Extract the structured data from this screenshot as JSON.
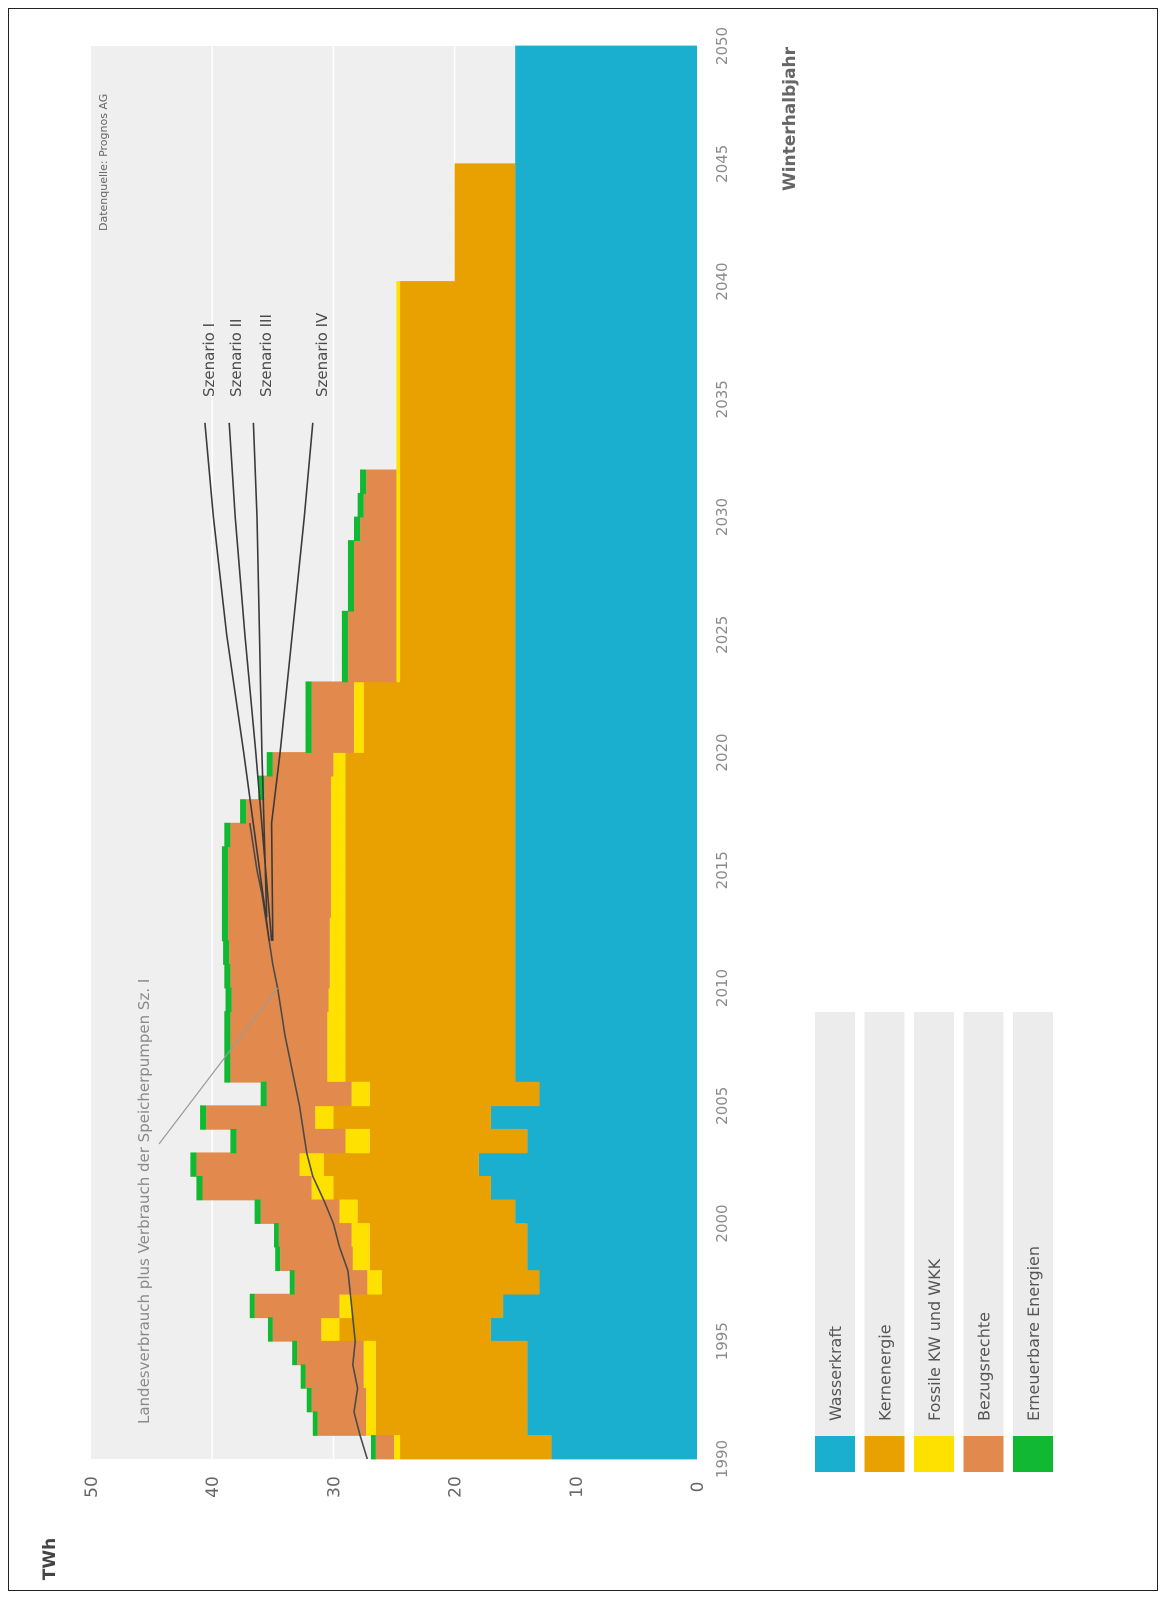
{
  "chart_data": {
    "type": "area",
    "orientation": "rotated-90-clockwise",
    "xlabel": "Winterhalbjahr",
    "ylabel": "TWh",
    "xlim": [
      1990,
      2050
    ],
    "ylim": [
      0,
      50
    ],
    "x_ticks": [
      "1990",
      "1995",
      "2000",
      "2005",
      "2010",
      "2015",
      "2020",
      "2025",
      "2030",
      "2035",
      "2040",
      "2045",
      "2050"
    ],
    "y_ticks": [
      "0",
      "10",
      "20",
      "30",
      "40",
      "50"
    ],
    "grid": true,
    "legend_position": "bottom",
    "source": "Datenquelle: Prognos AG",
    "years": [
      1990,
      1991,
      1992,
      1993,
      1994,
      1995,
      1996,
      1997,
      1998,
      1999,
      2000,
      2001,
      2002,
      2003,
      2004,
      2005,
      2006,
      2007,
      2008,
      2009,
      2010,
      2011,
      2012,
      2013,
      2014,
      2015,
      2016,
      2017,
      2018,
      2019,
      2020,
      2021,
      2022,
      2023,
      2024,
      2025,
      2026,
      2027,
      2028,
      2029,
      2030,
      2031,
      2032,
      2033,
      2034,
      2035,
      2036,
      2037,
      2038,
      2039,
      2040,
      2041,
      2042,
      2043,
      2044,
      2045,
      2046,
      2047,
      2048,
      2049
    ],
    "series": [
      {
        "name": "Wasserkraft",
        "color": "#1aaecf",
        "values": [
          12,
          14,
          14,
          14,
          14,
          17,
          16,
          13,
          14,
          14,
          15,
          17,
          18,
          14,
          17,
          13,
          15,
          15,
          15,
          15,
          15,
          15,
          15,
          15,
          15,
          15,
          15,
          15,
          15,
          15,
          15,
          15,
          15,
          15,
          15,
          15,
          15,
          15,
          15,
          15,
          15,
          15,
          15,
          15,
          15,
          15,
          15,
          15,
          15,
          15,
          15,
          15,
          15,
          15,
          15,
          15,
          15,
          15,
          15,
          15
        ]
      },
      {
        "name": "Kernenergie",
        "color": "#e8a100",
        "values": [
          12.5,
          12.5,
          12.5,
          12.5,
          12.5,
          12.5,
          12.5,
          13,
          13,
          13,
          13,
          13,
          12.8,
          13,
          13,
          14,
          14,
          14,
          14,
          14,
          14,
          14,
          14,
          14,
          14,
          14,
          14,
          14,
          14,
          14,
          12.5,
          12.5,
          12.5,
          9.5,
          9.5,
          9.5,
          9.5,
          9.5,
          9.5,
          9.5,
          9.5,
          9.5,
          9.5,
          9.5,
          9.5,
          9.5,
          9.5,
          9.5,
          9.5,
          9.5,
          5,
          5,
          5,
          5,
          5,
          0,
          0,
          0,
          0,
          0
        ]
      },
      {
        "name": "Fossile KW und WKK",
        "color": "#ffe100",
        "values": [
          0.5,
          0.8,
          0.8,
          1.0,
          1.0,
          1.5,
          1.0,
          1.2,
          1.4,
          1.5,
          1.5,
          1.8,
          2.0,
          2.0,
          1.5,
          1.5,
          1.5,
          1.5,
          1.5,
          1.4,
          1.3,
          1.3,
          1.3,
          1.2,
          1.2,
          1.2,
          1.2,
          1.2,
          1.2,
          1.0,
          0.8,
          0.8,
          0.8,
          0.3,
          0.3,
          0.3,
          0.3,
          0.3,
          0.3,
          0.3,
          0.3,
          0.3,
          0.3,
          0.3,
          0.3,
          0.3,
          0.3,
          0.3,
          0.3,
          0.3,
          0,
          0,
          0,
          0,
          0,
          0,
          0,
          0,
          0,
          0
        ]
      },
      {
        "name": "Bezugsrechte",
        "color": "#e28a4d",
        "values": [
          1.5,
          4,
          4.5,
          4.8,
          5.5,
          4,
          7,
          6,
          6,
          6,
          6.5,
          9,
          8.5,
          9,
          9,
          7,
          8,
          8,
          8,
          8,
          8.2,
          8.3,
          8.4,
          8.5,
          8.5,
          8.5,
          8.3,
          7,
          5.5,
          5,
          3.5,
          3.5,
          3.5,
          4,
          4,
          4,
          3.5,
          3.5,
          3.5,
          3,
          2.7,
          2.5,
          0,
          0,
          0,
          0,
          0,
          0,
          0,
          0,
          0,
          0,
          0,
          0,
          0,
          0,
          0,
          0,
          0,
          0
        ]
      },
      {
        "name": "Erneuerbare Energien",
        "color": "#11b832",
        "values": [
          0.4,
          0.4,
          0.4,
          0.4,
          0.4,
          0.4,
          0.4,
          0.4,
          0.4,
          0.4,
          0.5,
          0.5,
          0.5,
          0.5,
          0.5,
          0.5,
          0.5,
          0.5,
          0.5,
          0.5,
          0.5,
          0.5,
          0.5,
          0.5,
          0.5,
          0.5,
          0.5,
          0.5,
          0.5,
          0.5,
          0.5,
          0.5,
          0.5,
          0.5,
          0.5,
          0.5,
          0.5,
          0.5,
          0.5,
          0.5,
          0.5,
          0.5,
          0,
          0,
          0,
          0,
          0,
          0,
          0,
          0,
          0,
          0,
          0,
          0,
          0,
          0,
          0,
          0,
          0,
          0
        ]
      }
    ],
    "consumption_line": {
      "label": "Landesverbrauch plus Verbrauch der Speicherpumpen Sz. I",
      "points": [
        [
          1990,
          27.2
        ],
        [
          1991,
          27.8
        ],
        [
          1992,
          28.3
        ],
        [
          1993,
          28.0
        ],
        [
          1994,
          28.4
        ],
        [
          1995,
          28.2
        ],
        [
          1996,
          28.4
        ],
        [
          1997,
          28.6
        ],
        [
          1998,
          28.8
        ],
        [
          1999,
          29.5
        ],
        [
          2000,
          30.0
        ],
        [
          2001,
          30.8
        ],
        [
          2002,
          31.7
        ],
        [
          2003,
          32.2
        ],
        [
          2004,
          32.5
        ],
        [
          2005,
          32.8
        ],
        [
          2006,
          33.2
        ],
        [
          2007,
          33.6
        ],
        [
          2008,
          34.0
        ],
        [
          2009,
          34.3
        ],
        [
          2010,
          34.6
        ],
        [
          2011,
          35.0
        ],
        [
          2012,
          35.3
        ],
        [
          2013,
          35.6
        ],
        [
          2014,
          35.9
        ],
        [
          2015,
          36.3
        ],
        [
          2016,
          36.6
        ],
        [
          2017,
          36.9
        ]
      ]
    },
    "scenarios": [
      {
        "name": "Szenario I",
        "points": [
          [
            2012,
            35.3
          ],
          [
            2020,
            37.4
          ],
          [
            2025,
            38.8
          ],
          [
            2030,
            39.9
          ],
          [
            2034,
            40.6
          ]
        ]
      },
      {
        "name": "Szenario II",
        "points": [
          [
            2012,
            35.1
          ],
          [
            2020,
            36.4
          ],
          [
            2025,
            37.3
          ],
          [
            2030,
            38.1
          ],
          [
            2034,
            38.6
          ]
        ]
      },
      {
        "name": "Szenario III",
        "points": [
          [
            2013,
            35.5
          ],
          [
            2020,
            35.9
          ],
          [
            2025,
            36.1
          ],
          [
            2030,
            36.3
          ],
          [
            2034,
            36.6
          ]
        ]
      },
      {
        "name": "Szenario IV",
        "points": [
          [
            2012,
            35.0
          ],
          [
            2017,
            35.1
          ],
          [
            2020,
            34.4
          ],
          [
            2025,
            33.4
          ],
          [
            2030,
            32.4
          ],
          [
            2034,
            31.7
          ]
        ]
      }
    ]
  }
}
